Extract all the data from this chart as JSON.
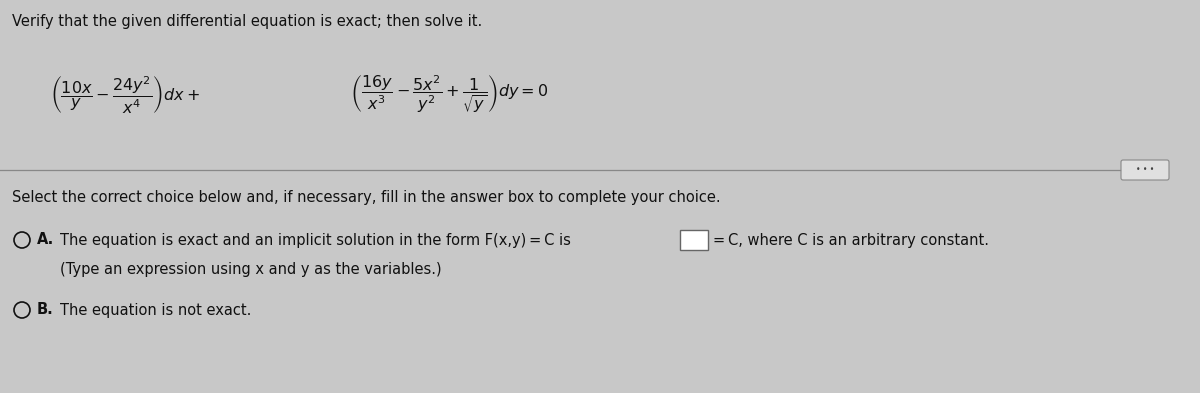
{
  "title": "Verify that the given differential equation is exact; then solve it.",
  "bg_color": "#c8c8c8",
  "text_color": "#111111",
  "select_text": "Select the correct choice below and, if necessary, fill in the answer box to complete your choice.",
  "option_a_text": "The equation is exact and an implicit solution in the form F(x,y) = C is",
  "option_a2": "= C, where C is an arbitrary constant.",
  "option_a3": "(Type an expression using x and y as the variables.)",
  "option_b": "The equation is not exact.",
  "font_size_title": 10.5,
  "font_size_body": 10.5,
  "font_size_eq": 11.5
}
